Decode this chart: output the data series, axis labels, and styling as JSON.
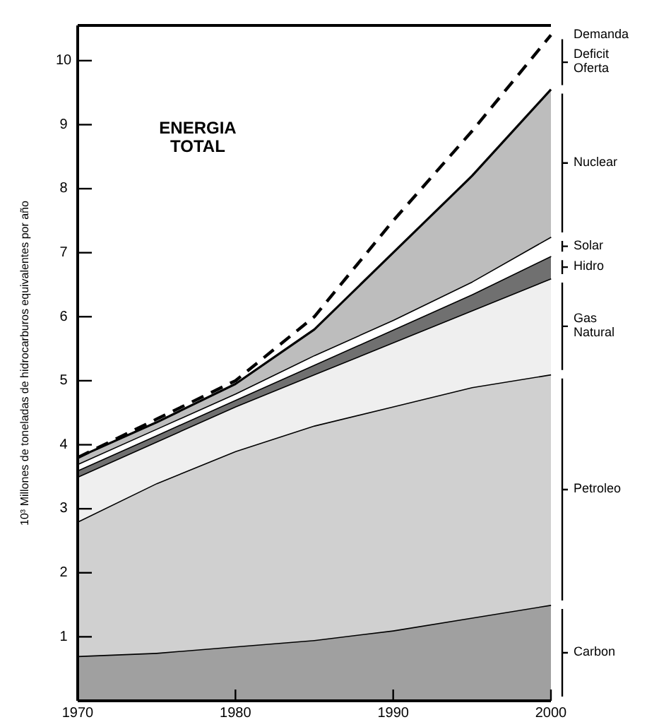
{
  "chart_data": {
    "type": "area",
    "title": "ENERGIA TOTAL",
    "ylabel": "10³ Millones de toneladas de hidrocarburos equivalentes por año",
    "stacked": true,
    "x": [
      1970,
      1975,
      1980,
      1985,
      1990,
      1995,
      2000
    ],
    "xlim": [
      1970,
      2000
    ],
    "xticks": [
      1970,
      1980,
      1990,
      2000
    ],
    "ylim": [
      0,
      10.55
    ],
    "yticks": [
      1,
      2,
      3,
      4,
      5,
      6,
      7,
      8,
      9,
      10
    ],
    "series": [
      {
        "name": "Carbon",
        "color": "#a0a0a0",
        "values": [
          0.7,
          0.75,
          0.85,
          0.95,
          1.1,
          1.3,
          1.5
        ]
      },
      {
        "name": "Petroleo",
        "color": "#d0d0d0",
        "values": [
          2.1,
          2.65,
          3.05,
          3.35,
          3.5,
          3.6,
          3.6
        ]
      },
      {
        "name": "Gas Natural",
        "color": "#efefef",
        "values": [
          0.7,
          0.65,
          0.7,
          0.8,
          1.0,
          1.2,
          1.5
        ]
      },
      {
        "name": "Hidro",
        "color": "#707070",
        "values": [
          0.1,
          0.1,
          0.1,
          0.15,
          0.2,
          0.25,
          0.35
        ]
      },
      {
        "name": "Solar",
        "color": "#ffffff",
        "values": [
          0.1,
          0.1,
          0.1,
          0.15,
          0.15,
          0.2,
          0.3
        ]
      },
      {
        "name": "Nuclear",
        "color": "#bdbdbd",
        "values": [
          0.1,
          0.1,
          0.15,
          0.4,
          1.05,
          1.65,
          2.3
        ]
      },
      {
        "name": "Demanda",
        "type": "line",
        "color": "#000000",
        "line_style": "dashed",
        "values": [
          3.8,
          4.4,
          5.0,
          6.0,
          7.5,
          8.9,
          10.4
        ]
      }
    ],
    "legend": "right",
    "annotations": [
      "Deficit Oferta"
    ]
  }
}
